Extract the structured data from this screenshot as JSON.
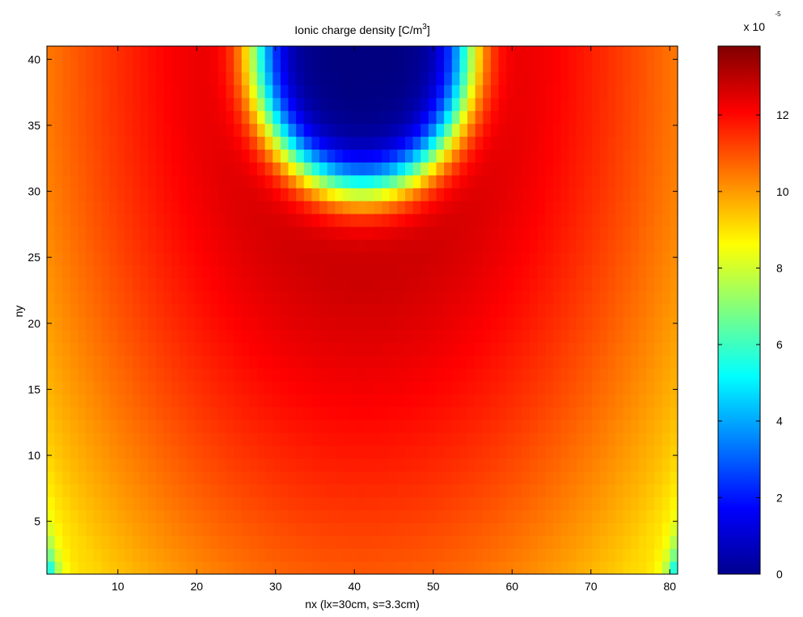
{
  "chart_data": {
    "type": "heatmap",
    "title": "Ionic charge density [C/m",
    "title_superscript": "3",
    "title_suffix": "]",
    "xlabel": "nx (lx=30cm, s=3.3cm)",
    "ylabel": "ny",
    "xlim": [
      1,
      81
    ],
    "ylim": [
      1,
      41
    ],
    "x_ticks": [
      10,
      20,
      30,
      40,
      50,
      60,
      70,
      80
    ],
    "y_ticks": [
      5,
      10,
      15,
      20,
      25,
      30,
      35,
      40
    ],
    "colorbar": {
      "colormap": "jet",
      "range": [
        0,
        13.8
      ],
      "ticks": [
        0,
        2,
        4,
        6,
        8,
        10,
        12
      ],
      "multiplier_label": "x 10",
      "exponent_label": "-5"
    },
    "field_description": {
      "low_region_center": {
        "nx": 41,
        "ny": 41,
        "value": 0
      },
      "peak_value": 13.5,
      "edge_value": 10.5,
      "corner_value": 8
    }
  }
}
